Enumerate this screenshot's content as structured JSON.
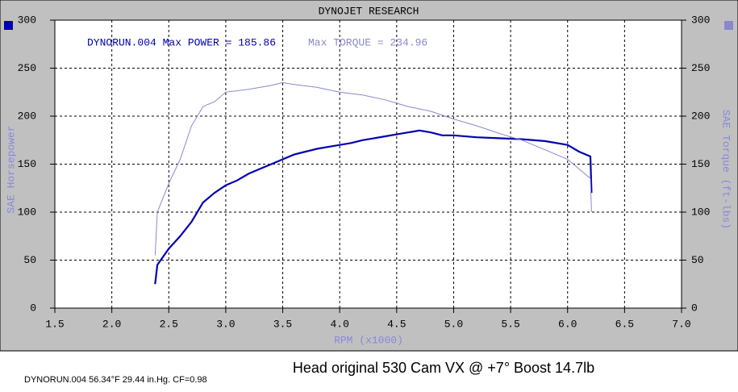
{
  "chart_data": {
    "type": "line",
    "title": "DYNOJET RESEARCH",
    "annotations": [
      "DYNORUN.004 Max POWER = 185.86",
      "Max TORQUE = 234.96"
    ],
    "xlabel": "RPM (x1000)",
    "ylabel": "SAE Horsepower",
    "y2label": "SAE Torque (ft-lbs)",
    "footer_main": "Head  original  530   Cam VX @ +7°   Boost 14.7lb",
    "footer_small": "DYNORUN.004 56.34°F 29.44 in.Hg. CF=0.98",
    "xlim": [
      1.5,
      7.0
    ],
    "xticks": [
      1.5,
      {
        "value": 2,
        "label": "2.0"
      },
      2.5,
      {
        "value": 3,
        "label": "3.0"
      },
      3.5,
      {
        "value": 4,
        "label": "4.0"
      },
      4.5,
      {
        "value": 5,
        "label": "5.0"
      },
      5.5,
      {
        "value": 6,
        "label": "6.0"
      },
      6.5,
      {
        "value": 7,
        "label": "7.0"
      }
    ],
    "ylim": [
      0,
      300
    ],
    "yticks": [
      0,
      50,
      100,
      150,
      200,
      250,
      300
    ],
    "y2lim": [
      0,
      300
    ],
    "y2ticks": [
      0,
      50,
      100,
      150,
      200,
      250,
      300
    ],
    "grid": true,
    "series": [
      {
        "color": "#0000b0",
        "x": [
          2.38,
          2.4,
          2.5,
          2.6,
          2.7,
          2.8,
          2.9,
          3.0,
          3.1,
          3.2,
          3.3,
          3.4,
          3.5,
          3.6,
          3.7,
          3.8,
          3.9,
          4.0,
          4.1,
          4.2,
          4.3,
          4.4,
          4.5,
          4.6,
          4.7,
          4.8,
          4.9,
          5.0,
          5.2,
          5.4,
          5.6,
          5.8,
          6.0,
          6.1,
          6.2,
          6.21
        ],
        "values": [
          25,
          45,
          62,
          75,
          90,
          110,
          120,
          128,
          133,
          140,
          145,
          150,
          155,
          160,
          163,
          166,
          168,
          170,
          172,
          175,
          177,
          179,
          181,
          183,
          185,
          183,
          180,
          180,
          178,
          177,
          176,
          174,
          170,
          163,
          158,
          120
        ]
      },
      {
        "color": "#8888cc",
        "axis": "y2",
        "x": [
          2.38,
          2.4,
          2.5,
          2.6,
          2.7,
          2.8,
          2.9,
          3.0,
          3.2,
          3.4,
          3.5,
          3.6,
          3.8,
          4.0,
          4.2,
          4.4,
          4.6,
          4.8,
          5.0,
          5.2,
          5.4,
          5.6,
          5.8,
          6.0,
          6.1,
          6.2,
          6.21
        ],
        "values": [
          55,
          100,
          130,
          155,
          190,
          210,
          215,
          225,
          228,
          232,
          235,
          233,
          230,
          225,
          222,
          217,
          210,
          205,
          197,
          190,
          182,
          175,
          165,
          155,
          145,
          135,
          100
        ]
      }
    ]
  }
}
